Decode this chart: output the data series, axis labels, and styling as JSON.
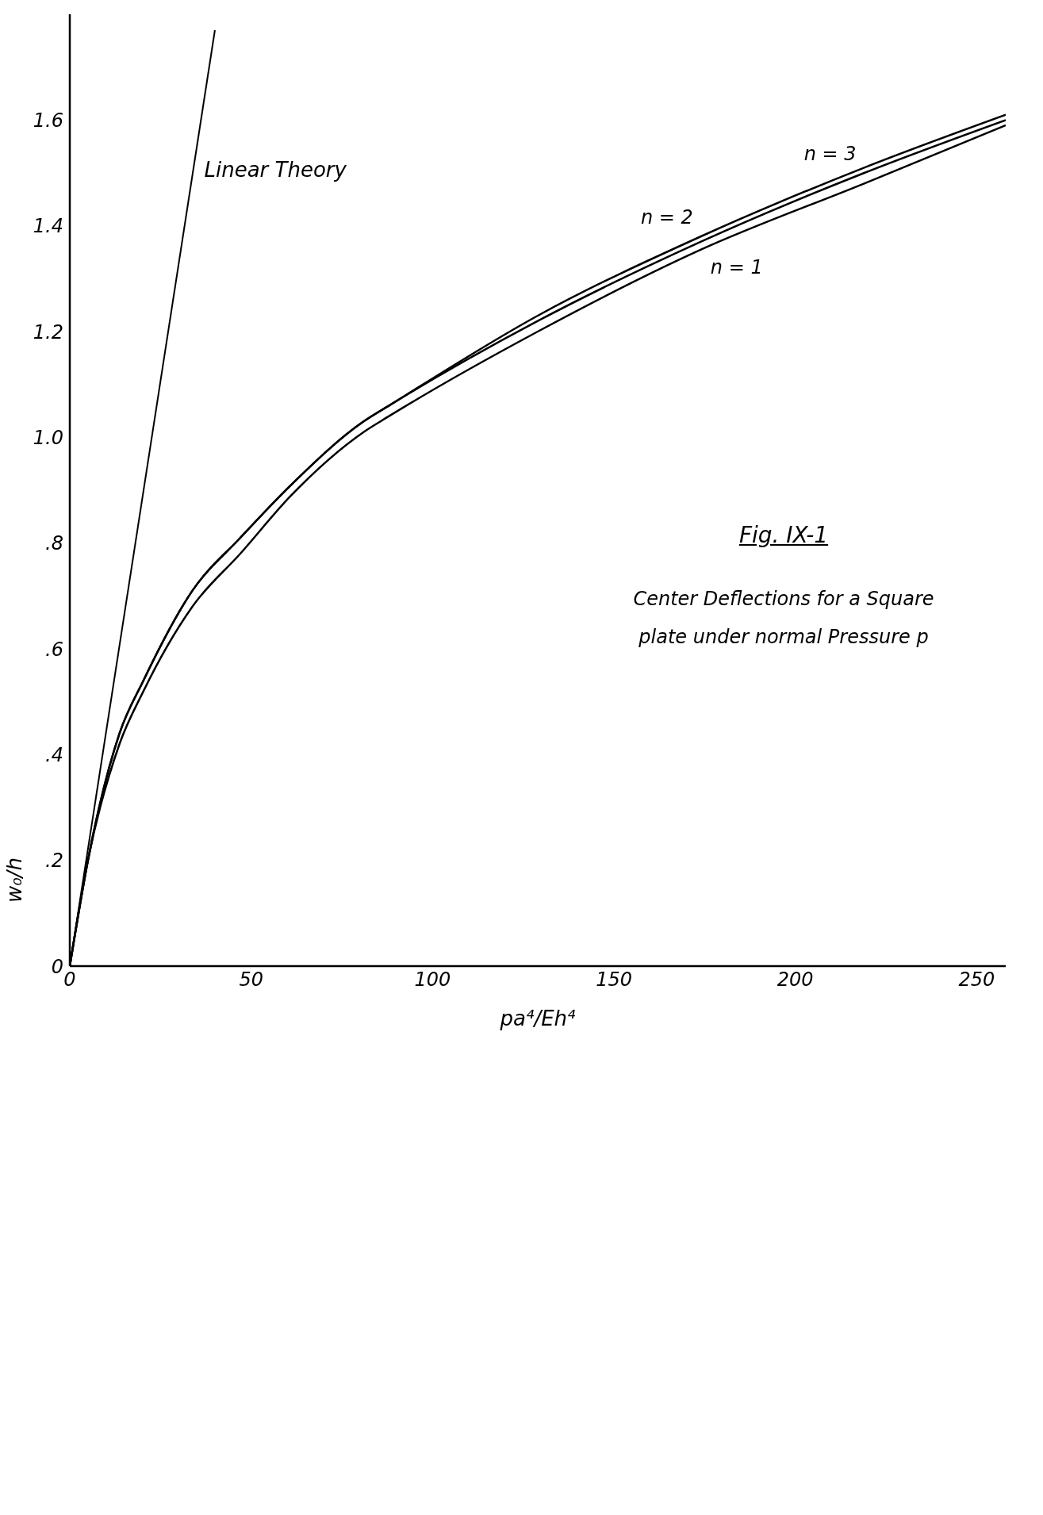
{
  "chart_data": {
    "type": "line",
    "title": "Fig. IX-1",
    "subtitle": "Center Deflections for a Square plate under normal Pressure p",
    "xlabel": "pa⁴/Eh⁴",
    "ylabel": "w₀/h",
    "x": [
      0,
      5,
      13.7,
      20.3,
      33.8,
      47,
      61,
      81,
      88,
      129,
      174,
      219,
      258
    ],
    "series": [
      {
        "name": "n = 2",
        "color": "#000000",
        "values": [
          0,
          0.2,
          0.44,
          0.54,
          0.71,
          0.81,
          0.91,
          1.03,
          1.06,
          1.23,
          1.38,
          1.51,
          1.61
        ]
      },
      {
        "name": "n = 3",
        "color": "#000000",
        "values": [
          0,
          0.2,
          0.44,
          0.54,
          0.71,
          0.81,
          0.91,
          1.03,
          1.06,
          1.22,
          1.37,
          1.5,
          1.6
        ]
      },
      {
        "name": "n = 1",
        "color": "#000000",
        "values": [
          0,
          0.2,
          0.42,
          0.52,
          0.68,
          0.78,
          0.89,
          1.01,
          1.04,
          1.2,
          1.355,
          1.48,
          1.59
        ]
      },
      {
        "name": "Linear Theory",
        "color": "#000000",
        "x": [
          0,
          40
        ],
        "values": [
          0,
          1.77
        ]
      }
    ],
    "xlim": [
      0,
      258
    ],
    "xticks": [
      0,
      50,
      100,
      150,
      200,
      250
    ],
    "ylim": [
      0,
      1.8
    ],
    "yticks": [
      0,
      {
        "value": 0.2,
        "label": ".2"
      },
      {
        "value": 0.4,
        "label": ".4"
      },
      {
        "value": 0.6,
        "label": ".6"
      },
      {
        "value": 0.8,
        "label": ".8"
      },
      {
        "value": 1.0,
        "label": "1.0"
      },
      {
        "value": 1.2,
        "label": "1.2"
      },
      {
        "value": 1.4,
        "label": "1.4"
      },
      {
        "value": 1.6,
        "label": "1.6"
      }
    ],
    "legend": false,
    "marker": "none",
    "line_style": "solid",
    "grid": false
  }
}
